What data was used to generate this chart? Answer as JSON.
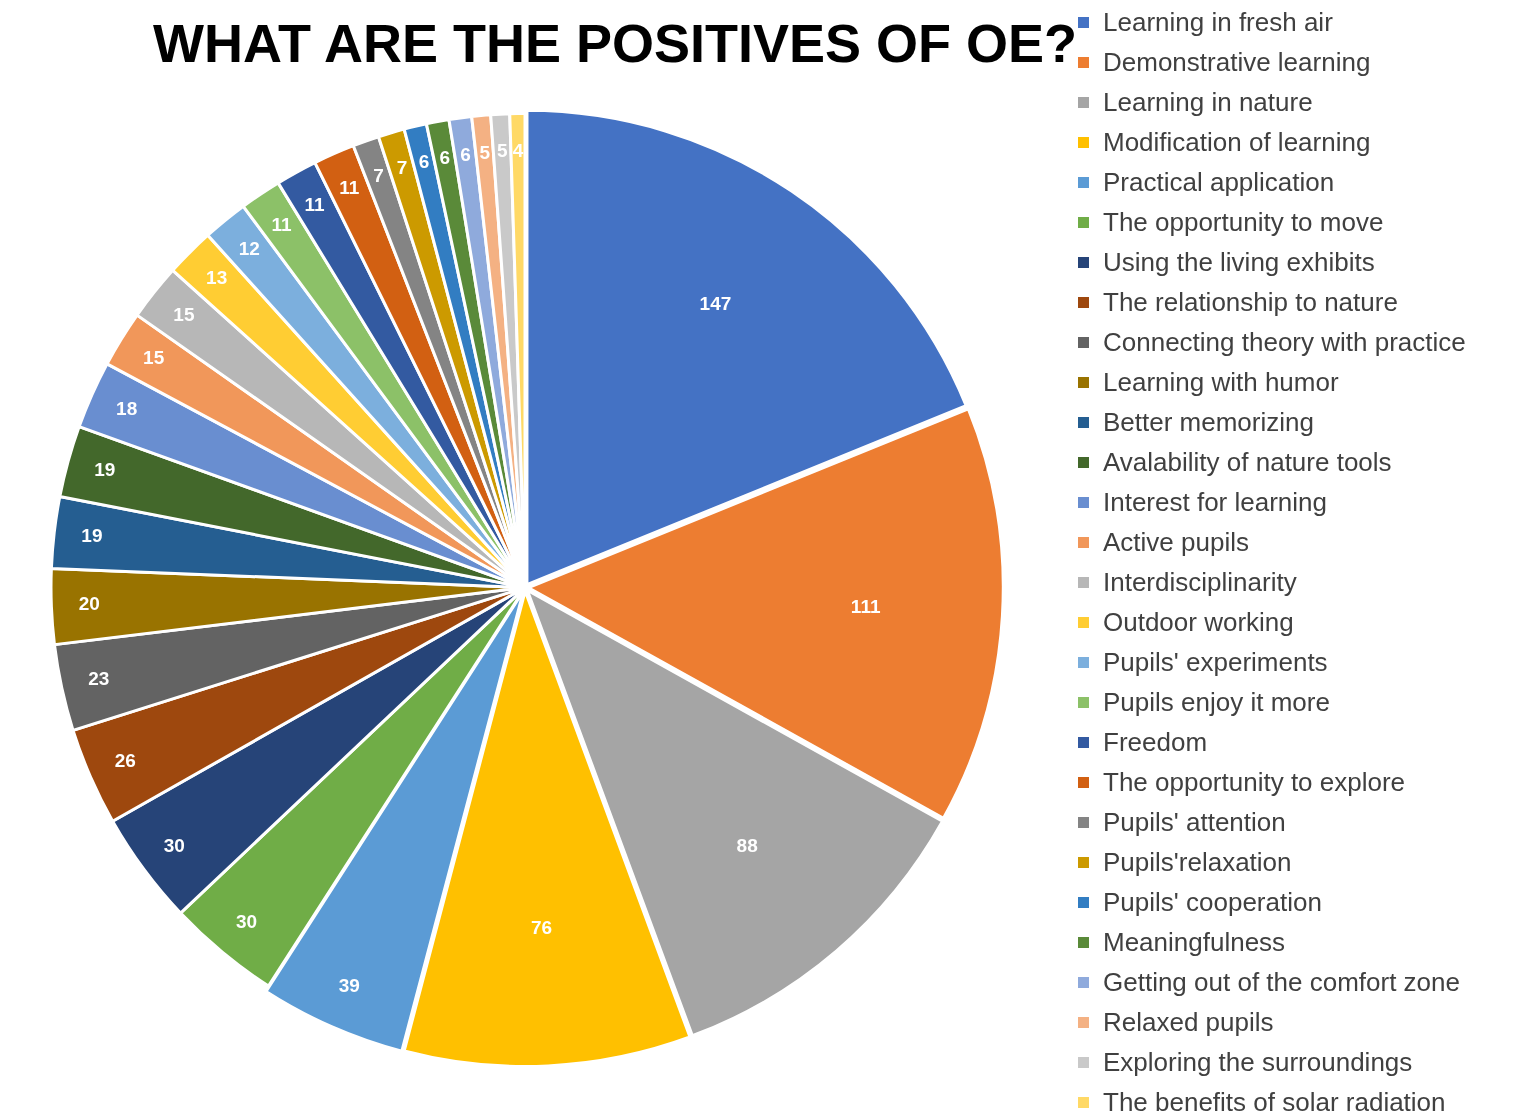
{
  "chart_data": {
    "type": "pie",
    "title": "WHAT ARE THE POSITIVES OF OE?",
    "legend": "right",
    "data_labels": true,
    "categories": [
      "Learning in fresh air",
      "Demonstrative learning",
      "Learning in nature",
      "Modification of learning",
      "Practical application",
      "The opportunity to move",
      "Using the living exhibits",
      "The relationship to nature",
      "Connecting theory with practice",
      "Learning with humor",
      "Better memorizing",
      "Avalability of nature tools",
      "Interest for learning",
      "Active pupils",
      "Interdisciplinarity",
      "Outdoor working",
      "Pupils' experiments",
      "Pupils enjoy it more",
      "Freedom",
      "The opportunity to explore",
      "Pupils' attention",
      "Pupils'relaxation",
      "Pupils' cooperation",
      "Meaningfulness",
      "Getting out of the comfort zone",
      "Relaxed pupils",
      "Exploring the surroundings",
      "The benefits of solar radiation"
    ],
    "values": [
      147,
      111,
      88,
      76,
      39,
      30,
      30,
      26,
      23,
      20,
      19,
      19,
      18,
      15,
      15,
      13,
      12,
      11,
      11,
      11,
      7,
      7,
      6,
      6,
      6,
      5,
      5,
      4
    ],
    "colors": [
      "#4472c4",
      "#ed7d31",
      "#a5a5a5",
      "#ffc000",
      "#5b9bd5",
      "#70ad47",
      "#264478",
      "#9e480e",
      "#636363",
      "#997300",
      "#255e91",
      "#43682b",
      "#698ed0",
      "#f1975a",
      "#b7b7b7",
      "#ffcd33",
      "#7cafdd",
      "#8cc168",
      "#335aa1",
      "#d26012",
      "#848484",
      "#cc9a00",
      "#327dc2",
      "#5a8a39",
      "#8faadc",
      "#f4b183",
      "#c9c9c9",
      "#ffd966"
    ]
  }
}
